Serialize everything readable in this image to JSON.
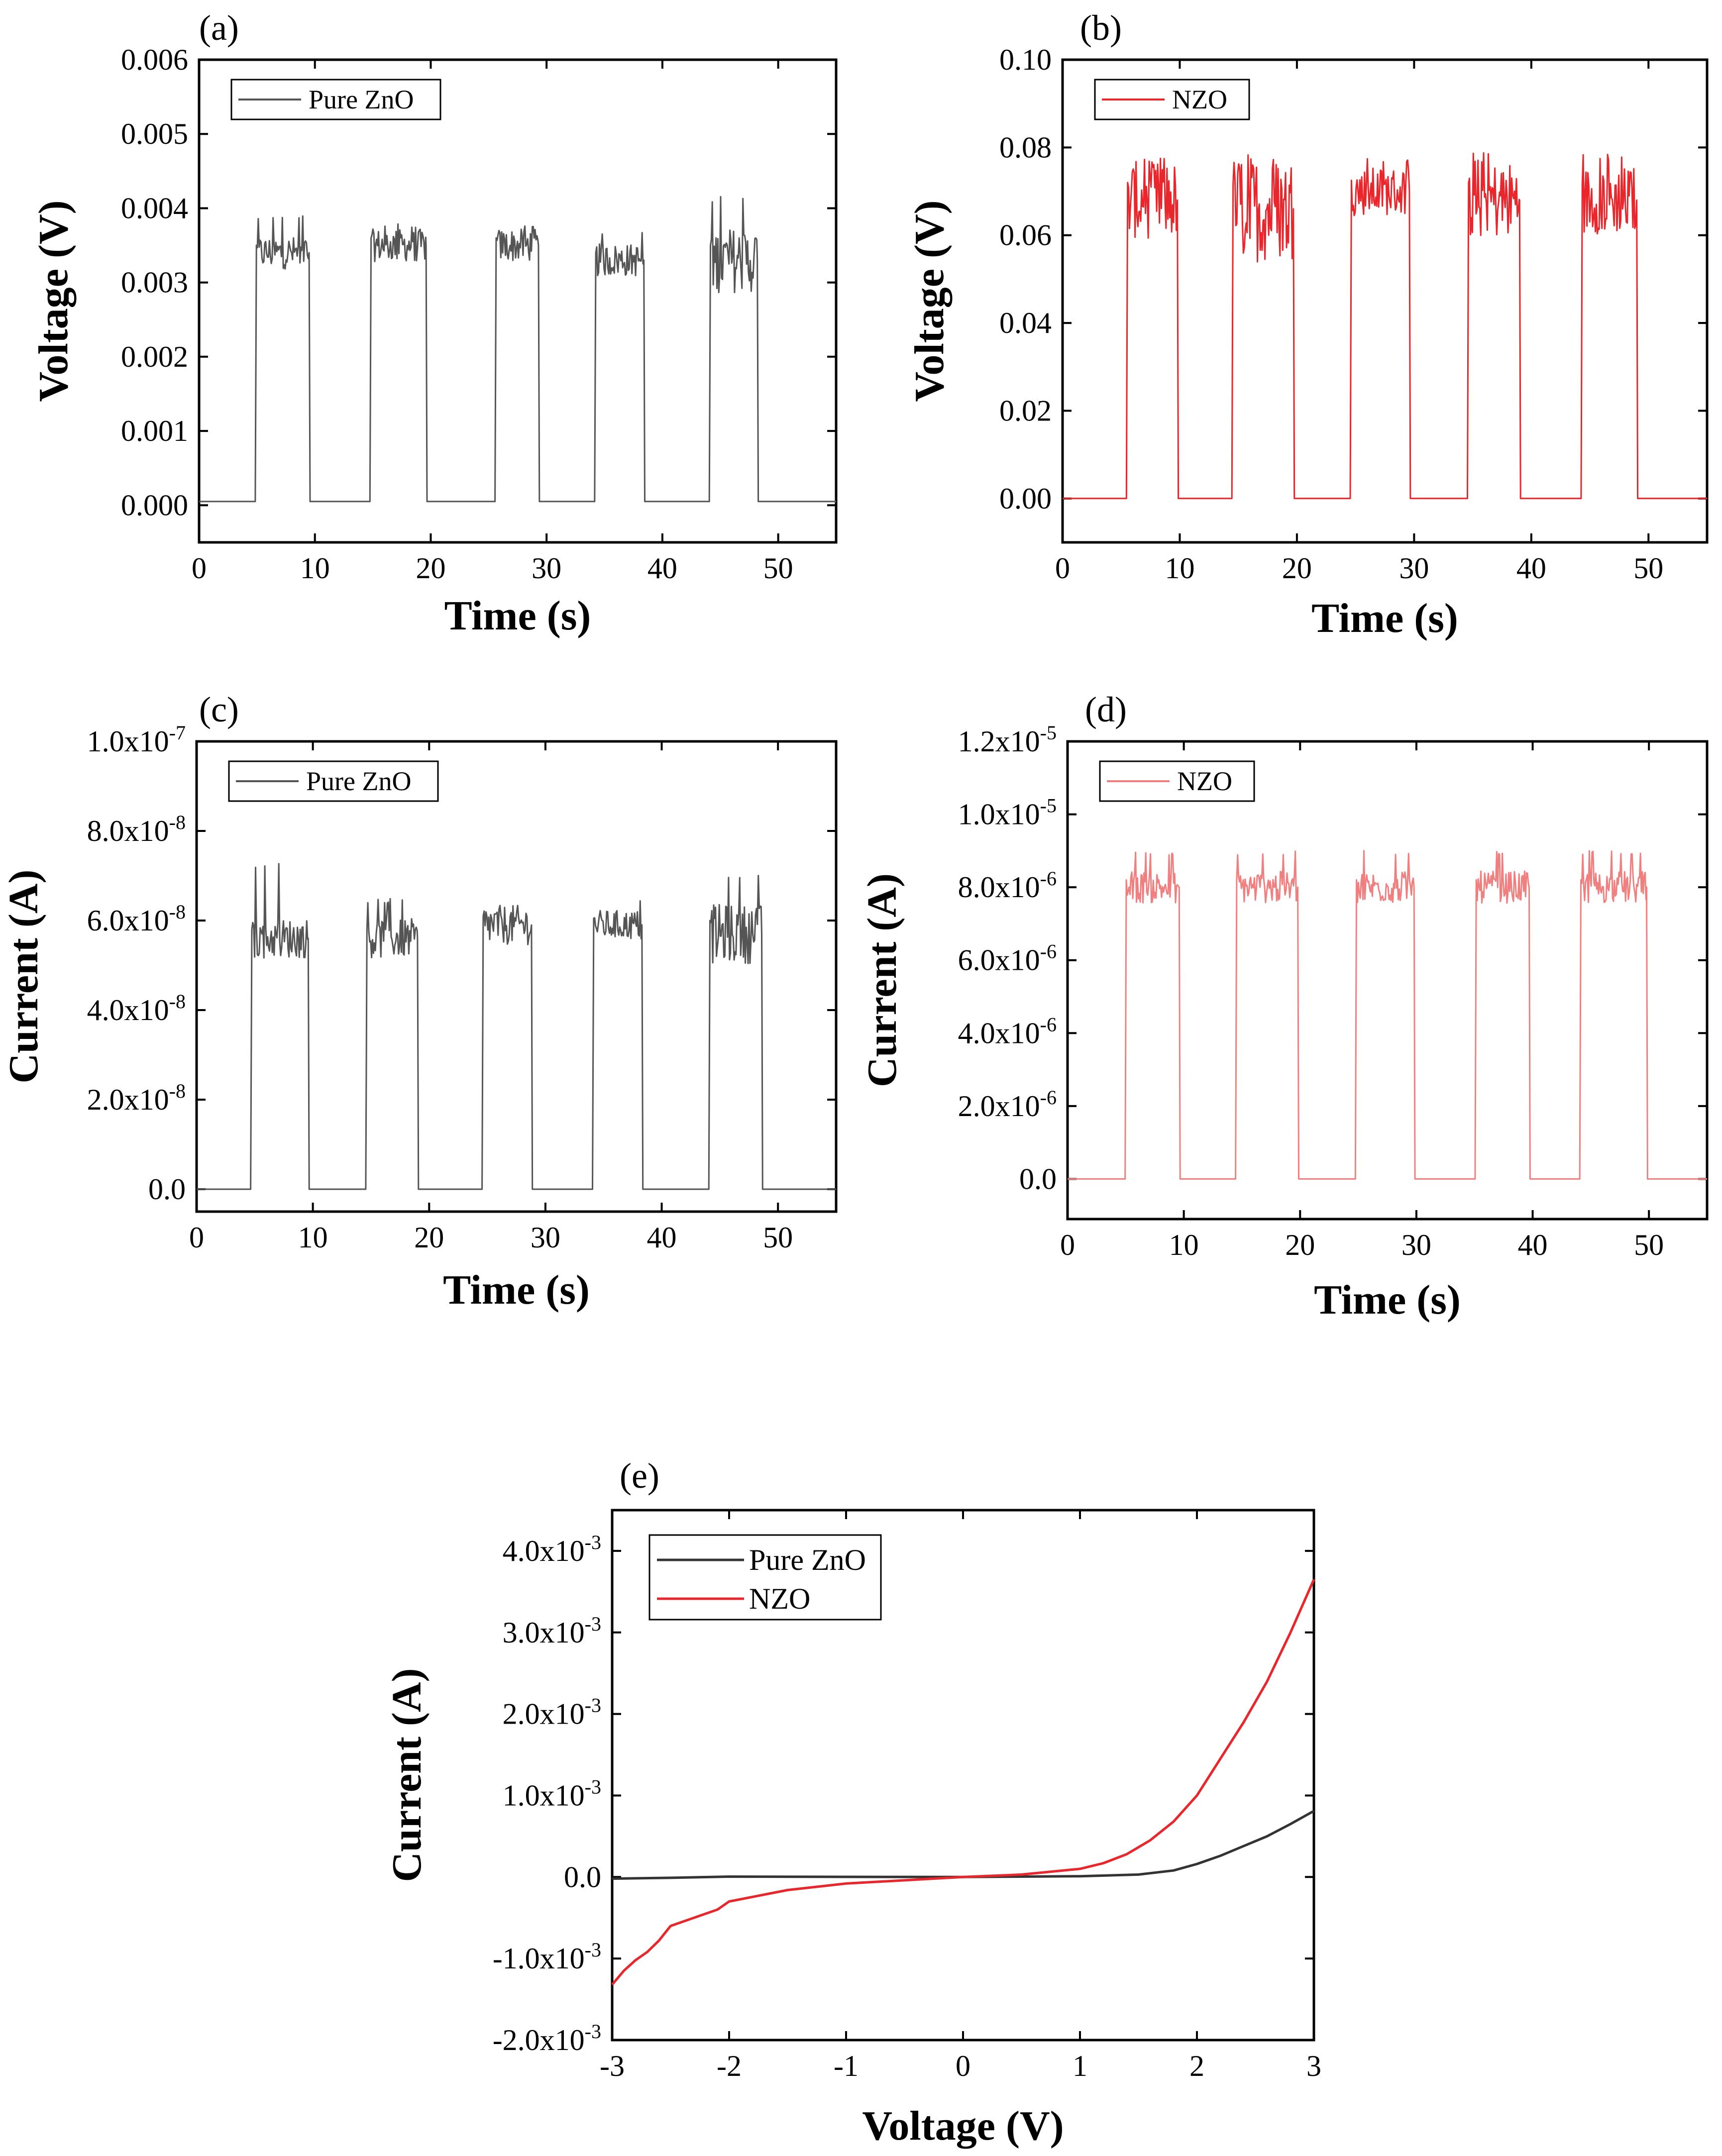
{
  "chart_data": [
    {
      "id": "a",
      "panel_label": "(a)",
      "type": "line",
      "xlabel": "Time (s)",
      "ylabel": "Voltage (V)",
      "xlim": [
        0,
        55
      ],
      "ylim": [
        -0.0005,
        0.006
      ],
      "xticks": [
        0,
        10,
        20,
        30,
        40,
        50
      ],
      "xtick_labels": [
        "0",
        "10",
        "20",
        "30",
        "40",
        "50"
      ],
      "yticks": [
        0.0,
        0.001,
        0.002,
        0.003,
        0.004,
        0.005,
        0.006
      ],
      "ytick_labels": [
        "0.000",
        "0.001",
        "0.002",
        "0.003",
        "0.004",
        "0.005",
        "0.006"
      ],
      "legend": "top-left",
      "series": [
        {
          "name": "Pure ZnO",
          "color": "#555555",
          "baseline": 5e-05,
          "pulses": [
            {
              "on": 4.9,
              "off": 9.5,
              "level": 0.0034,
              "noise": 0.0002,
              "peak": 0.0039
            },
            {
              "on": 14.8,
              "off": 19.6,
              "level": 0.0035,
              "noise": 0.0002,
              "peak": 0.0038
            },
            {
              "on": 25.6,
              "off": 29.3,
              "level": 0.0035,
              "noise": 0.0002,
              "peak": 0.0038
            },
            {
              "on": 34.2,
              "off": 38.4,
              "level": 0.0033,
              "noise": 0.0002,
              "peak": 0.0037
            },
            {
              "on": 44.1,
              "off": 48.2,
              "level": 0.0033,
              "noise": 0.0004,
              "peak": 0.0042
            }
          ]
        }
      ]
    },
    {
      "id": "b",
      "panel_label": "(b)",
      "type": "line",
      "xlabel": "Time (s)",
      "ylabel": "Voltage (V)",
      "xlim": [
        0,
        55
      ],
      "ylim": [
        -0.01,
        0.1
      ],
      "xticks": [
        0,
        10,
        20,
        30,
        40,
        50
      ],
      "xtick_labels": [
        "0",
        "10",
        "20",
        "30",
        "40",
        "50"
      ],
      "yticks": [
        0.0,
        0.02,
        0.04,
        0.06,
        0.08,
        0.1
      ],
      "ytick_labels": [
        "0.00",
        "0.02",
        "0.04",
        "0.06",
        "0.08",
        "0.10"
      ],
      "legend": "top-left",
      "series": [
        {
          "name": "NZO",
          "color": "#e8262b",
          "baseline": 0.0,
          "pulses": [
            {
              "on": 5.5,
              "off": 9.8,
              "level": 0.068,
              "noise": 0.008,
              "peak": 0.079
            },
            {
              "on": 14.5,
              "off": 19.7,
              "level": 0.066,
              "noise": 0.011,
              "peak": 0.079
            },
            {
              "on": 24.6,
              "off": 29.6,
              "level": 0.07,
              "noise": 0.005,
              "peak": 0.078
            },
            {
              "on": 34.6,
              "off": 39.0,
              "level": 0.068,
              "noise": 0.008,
              "peak": 0.079
            },
            {
              "on": 44.3,
              "off": 49.0,
              "level": 0.068,
              "noise": 0.007,
              "peak": 0.079
            }
          ]
        }
      ]
    },
    {
      "id": "c",
      "panel_label": "(c)",
      "type": "line",
      "xlabel": "Time (s)",
      "ylabel": "Current (A)",
      "xlim": [
        0,
        55
      ],
      "ylim": [
        -5e-09,
        1e-07
      ],
      "xticks": [
        0,
        10,
        20,
        30,
        40,
        50
      ],
      "xtick_labels": [
        "0",
        "10",
        "20",
        "30",
        "40",
        "50"
      ],
      "yticks": [
        0,
        2e-08,
        4e-08,
        6e-08,
        8e-08,
        1e-07
      ],
      "ytick_labels": [
        {
          "m": "0.0",
          "e": ""
        },
        {
          "m": "2.0x10",
          "e": "-8"
        },
        {
          "m": "4.0x10",
          "e": "-8"
        },
        {
          "m": "6.0x10",
          "e": "-8"
        },
        {
          "m": "8.0x10",
          "e": "-8"
        },
        {
          "m": "1.0x10",
          "e": "-7"
        }
      ],
      "legend": "top-left",
      "series": [
        {
          "name": "Pure ZnO",
          "color": "#555555",
          "baseline": 0.0,
          "pulses": [
            {
              "on": 4.7,
              "off": 9.6,
              "level": 5.6e-08,
              "noise": 4e-09,
              "peak": 7.3e-08
            },
            {
              "on": 14.6,
              "off": 19.0,
              "level": 5.6e-08,
              "noise": 4e-09,
              "peak": 6.5e-08
            },
            {
              "on": 24.6,
              "off": 28.8,
              "level": 5.9e-08,
              "noise": 4e-09,
              "peak": 6.8e-08
            },
            {
              "on": 34.1,
              "off": 38.3,
              "level": 5.9e-08,
              "noise": 3e-09,
              "peak": 6.5e-08
            },
            {
              "on": 44.1,
              "off": 48.6,
              "level": 5.7e-08,
              "noise": 6e-09,
              "peak": 7.1e-08
            }
          ]
        }
      ]
    },
    {
      "id": "d",
      "panel_label": "(d)",
      "type": "line",
      "xlabel": "Time (s)",
      "ylabel": "Current (A)",
      "xlim": [
        0,
        55
      ],
      "ylim": [
        -1.1e-06,
        1.2e-05
      ],
      "xticks": [
        0,
        10,
        20,
        30,
        40,
        50
      ],
      "xtick_labels": [
        "0",
        "10",
        "20",
        "30",
        "40",
        "50"
      ],
      "yticks": [
        0,
        2e-06,
        4e-06,
        6e-06,
        8e-06,
        1e-05,
        1.2e-05
      ],
      "ytick_labels": [
        {
          "m": "0.0",
          "e": ""
        },
        {
          "m": "2.0x10",
          "e": "-6"
        },
        {
          "m": "4.0x10",
          "e": "-6"
        },
        {
          "m": "6.0x10",
          "e": "-6"
        },
        {
          "m": "8.0x10",
          "e": "-6"
        },
        {
          "m": "1.0x10",
          "e": "-5"
        },
        {
          "m": "1.2x10",
          "e": "-5"
        }
      ],
      "legend": "top-left",
      "series": [
        {
          "name": "NZO",
          "color": "#f08080",
          "baseline": 0.0,
          "pulses": [
            {
              "on": 5.0,
              "off": 9.6,
              "level": 8e-06,
              "noise": 4e-07,
              "peak": 9e-06
            },
            {
              "on": 14.5,
              "off": 19.8,
              "level": 8e-06,
              "noise": 4e-07,
              "peak": 9e-06
            },
            {
              "on": 24.8,
              "off": 29.8,
              "level": 8e-06,
              "noise": 4e-07,
              "peak": 9e-06
            },
            {
              "on": 35.1,
              "off": 39.7,
              "level": 8e-06,
              "noise": 4e-07,
              "peak": 9e-06
            },
            {
              "on": 44.1,
              "off": 49.8,
              "level": 8e-06,
              "noise": 4e-07,
              "peak": 9e-06
            }
          ]
        }
      ]
    },
    {
      "id": "e",
      "panel_label": "(e)",
      "type": "line",
      "xlabel": "Voltage (V)",
      "ylabel": "Current (A)",
      "xlim": [
        -3,
        3
      ],
      "ylim": [
        -0.002,
        0.0045
      ],
      "xticks": [
        -3,
        -2,
        -1,
        0,
        1,
        2,
        3
      ],
      "xtick_labels": [
        "-3",
        "-2",
        "-1",
        "0",
        "1",
        "2",
        "3"
      ],
      "yticks": [
        -0.002,
        -0.001,
        0,
        0.001,
        0.002,
        0.003,
        0.004
      ],
      "ytick_labels": [
        {
          "m": "-2.0x10",
          "e": "-3"
        },
        {
          "m": "-1.0x10",
          "e": "-3"
        },
        {
          "m": "0.0",
          "e": ""
        },
        {
          "m": "1.0x10",
          "e": "-3"
        },
        {
          "m": "2.0x10",
          "e": "-3"
        },
        {
          "m": "3.0x10",
          "e": "-3"
        },
        {
          "m": "4.0x10",
          "e": "-3"
        }
      ],
      "legend": "top-left",
      "series": [
        {
          "name": "Pure ZnO",
          "color": "#333333",
          "x": [
            -3,
            -2.5,
            -2,
            -1.5,
            -1,
            -0.5,
            0,
            0.5,
            1,
            1.5,
            1.8,
            2,
            2.2,
            2.4,
            2.6,
            2.8,
            3
          ],
          "y": [
            -2e-05,
            -1e-05,
            5e-06,
            3e-06,
            2e-06,
            1e-06,
            0,
            5e-06,
            1e-05,
            3e-05,
            8e-05,
            0.00016,
            0.00026,
            0.00038,
            0.0005,
            0.00065,
            0.00081
          ]
        },
        {
          "name": "NZO",
          "color": "#e8262b",
          "x": [
            -3,
            -2.9,
            -2.8,
            -2.7,
            -2.6,
            -2.5,
            -2.3,
            -2.1,
            -2,
            -1.5,
            -1,
            -0.5,
            0,
            0.5,
            1,
            1.2,
            1.4,
            1.6,
            1.8,
            2,
            2.2,
            2.4,
            2.6,
            2.8,
            3
          ],
          "y": [
            -0.00132,
            -0.00115,
            -0.00102,
            -0.00092,
            -0.00078,
            -0.0006,
            -0.0005,
            -0.0004,
            -0.0003,
            -0.00016,
            -8e-05,
            -4e-05,
            0,
            3e-05,
            0.0001,
            0.00017,
            0.00028,
            0.00045,
            0.00068,
            0.001,
            0.00145,
            0.0019,
            0.0024,
            0.003,
            0.00365
          ]
        }
      ]
    }
  ]
}
